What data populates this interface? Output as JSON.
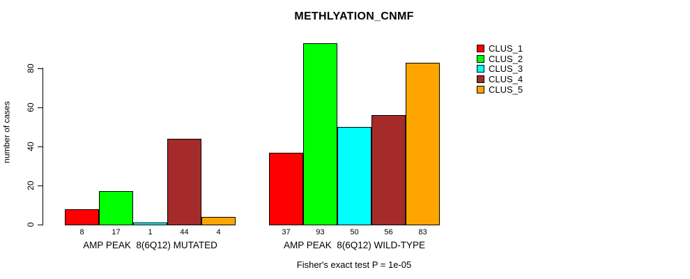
{
  "chart_data": {
    "type": "bar",
    "title": "METHLYATION_CNMF",
    "ylabel": "number of cases",
    "y_ticks": [
      0,
      20,
      40,
      60,
      80
    ],
    "ylim": [
      0,
      93
    ],
    "series": [
      "CLUS_1",
      "CLUS_2",
      "CLUS_3",
      "CLUS_4",
      "CLUS_5"
    ],
    "colors": [
      "#FF0000",
      "#00FF00",
      "#00FFFF",
      "#A52A2A",
      "#FFA500"
    ],
    "groups": [
      {
        "label": "AMP PEAK  8(6Q12) MUTATED",
        "values": [
          8,
          17,
          1,
          44,
          4
        ]
      },
      {
        "label": "AMP PEAK  8(6Q12) WILD-TYPE",
        "values": [
          37,
          93,
          50,
          56,
          83
        ]
      }
    ],
    "bar_outline": "#000000",
    "grid": false,
    "legend_position": "top-right",
    "annotation": "Fisher's exact test P = 1e-05"
  }
}
